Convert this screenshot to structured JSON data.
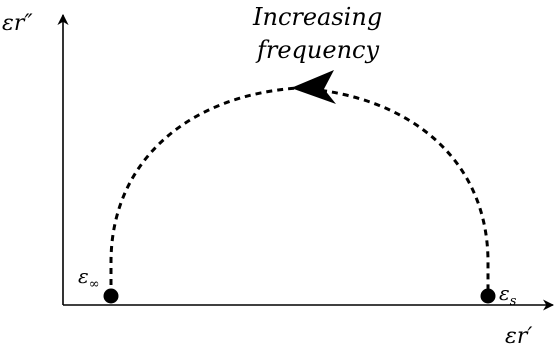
{
  "diagram": {
    "y_axis_label": {
      "base": "ε",
      "var": "r",
      "prime": "″"
    },
    "x_axis_label": {
      "base": "ε",
      "var": "r",
      "prime": "′"
    },
    "left_point_label": {
      "base": "ε",
      "sub": "∞"
    },
    "right_point_label": {
      "base": "ε",
      "sub": "s"
    },
    "annotation_line1": "Increasing",
    "annotation_line2": "frequency",
    "arrow_direction": "toward-left",
    "curve_style": "dashed-semicircle",
    "colors": {
      "ink": "#000000",
      "background": "#ffffff"
    }
  }
}
